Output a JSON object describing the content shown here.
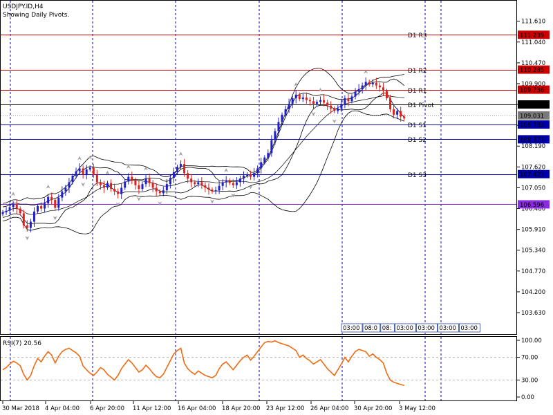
{
  "header": {
    "symbol": "USDJPY.ID,H4",
    "subtitle": "Showing Daily Pivots."
  },
  "colors": {
    "bull": "#1f1fcc",
    "bear": "#e0201c",
    "band": "#000000",
    "rsi": "#f06a12",
    "pivot_res": "#cc0000",
    "pivot_sup": "#0000aa",
    "pivot_line": "#000000",
    "purple": "#8a2be2",
    "grid_vertical": "#0000c8",
    "pivot_badge": "#000000",
    "current_price_badge": "#7a7a7a"
  },
  "chart_data": [
    {
      "type": "candlestick",
      "panel": "main",
      "title": "USDJPY.ID,H4",
      "ylim": [
        103.1,
        111.85
      ],
      "y_ticks": [
        "111.610",
        "111.040",
        "110.470",
        "109.900",
        "109.330",
        "108.760",
        "108.190",
        "107.620",
        "107.050",
        "106.480",
        "105.910",
        "105.340",
        "104.770",
        "104.200",
        "103.630"
      ],
      "x_ticks": [
        "30 Mar 2018",
        "4 Apr 04:00",
        "6 Apr 20:00",
        "11 Apr 12:00",
        "16 Apr 04:00",
        "18 Apr 20:00",
        "23 Apr 12:00",
        "26 Apr 04:00",
        "30 Apr 20:00",
        "3 May 12:00"
      ],
      "pivots": [
        {
          "name": "D1  R3",
          "value": 111.239,
          "label": "111.239",
          "color": "#cc0000"
        },
        {
          "name": "D1  R2",
          "value": 110.285,
          "label": "110.285",
          "color": "#cc0000"
        },
        {
          "name": "D1  R1",
          "value": 109.736,
          "label": "109.736",
          "color": "#cc0000"
        },
        {
          "name": "D1  Pivot",
          "value": 109.331,
          "label": "109.331",
          "color": "#000000"
        },
        {
          "name": "D1  S1",
          "value": 108.782,
          "label": "108.782",
          "color": "#0000aa"
        },
        {
          "name": "D1  S2",
          "value": 108.377,
          "label": "108.377",
          "color": "#0000aa"
        },
        {
          "name": "D1  S3",
          "value": 107.423,
          "label": "107.423",
          "color": "#0000aa"
        }
      ],
      "extra_level": {
        "value": 106.596,
        "label": "106.596"
      },
      "current_price": {
        "value": 109.031,
        "label": "109.031"
      },
      "session_labels": [
        "03:00",
        "08:0",
        "08:",
        "03:00",
        "03:00",
        "03:00",
        "03:00"
      ],
      "close_series": [
        106.38,
        106.42,
        106.52,
        106.6,
        106.48,
        106.35,
        106.02,
        105.95,
        106.12,
        106.4,
        106.55,
        106.48,
        106.62,
        106.8,
        106.72,
        106.5,
        106.78,
        106.95,
        107.05,
        107.2,
        107.38,
        107.5,
        107.58,
        107.42,
        107.55,
        107.6,
        107.4,
        107.2,
        107.12,
        107.05,
        107.18,
        107.02,
        106.95,
        106.88,
        107.05,
        107.22,
        107.35,
        107.25,
        107.12,
        107.02,
        107.15,
        107.3,
        107.18,
        107.05,
        106.95,
        106.9,
        106.98,
        107.15,
        107.32,
        107.48,
        107.62,
        107.7,
        107.45,
        107.3,
        107.2,
        107.15,
        107.2,
        107.12,
        107.05,
        107.0,
        106.95,
        106.98,
        107.1,
        107.2,
        107.25,
        107.18,
        107.12,
        107.2,
        107.3,
        107.38,
        107.42,
        107.35,
        107.45,
        107.58,
        107.75,
        107.88,
        108.0,
        108.35,
        108.6,
        108.85,
        109.05,
        109.2,
        109.35,
        109.5,
        109.6,
        109.48,
        109.52,
        109.45,
        109.42,
        109.35,
        109.4,
        109.45,
        109.38,
        109.3,
        109.22,
        109.15,
        109.22,
        109.35,
        109.5,
        109.42,
        109.55,
        109.68,
        109.75,
        109.85,
        109.95,
        109.88,
        109.92,
        109.85,
        109.8,
        109.7,
        109.5,
        109.2,
        109.05,
        109.15,
        109.0,
        108.95
      ]
    },
    {
      "type": "line",
      "panel": "rsi",
      "title": "RSI(7) 20.56",
      "ylim": [
        0,
        100
      ],
      "y_ticks": [
        "100.00",
        "70.00",
        "30.00",
        "0.00"
      ],
      "levels": [
        70,
        30
      ],
      "series": [
        {
          "name": "RSI(7)",
          "values": [
            48,
            52,
            58,
            63,
            60,
            55,
            40,
            30,
            38,
            55,
            68,
            62,
            72,
            80,
            74,
            60,
            72,
            80,
            84,
            86,
            82,
            78,
            72,
            55,
            48,
            42,
            38,
            44,
            52,
            48,
            40,
            35,
            30,
            38,
            50,
            58,
            66,
            60,
            52,
            44,
            48,
            56,
            50,
            42,
            36,
            34,
            40,
            52,
            64,
            76,
            82,
            86,
            60,
            50,
            44,
            40,
            46,
            42,
            38,
            36,
            34,
            38,
            50,
            58,
            62,
            55,
            48,
            56,
            64,
            70,
            74,
            65,
            72,
            80,
            88,
            96,
            98,
            97,
            99,
            96,
            94,
            92,
            90,
            86,
            82,
            70,
            74,
            68,
            64,
            58,
            62,
            66,
            58,
            50,
            44,
            38,
            48,
            58,
            70,
            62,
            72,
            80,
            84,
            82,
            80,
            72,
            76,
            70,
            66,
            60,
            42,
            30,
            26,
            24,
            22,
            20.56
          ]
        }
      ]
    }
  ]
}
